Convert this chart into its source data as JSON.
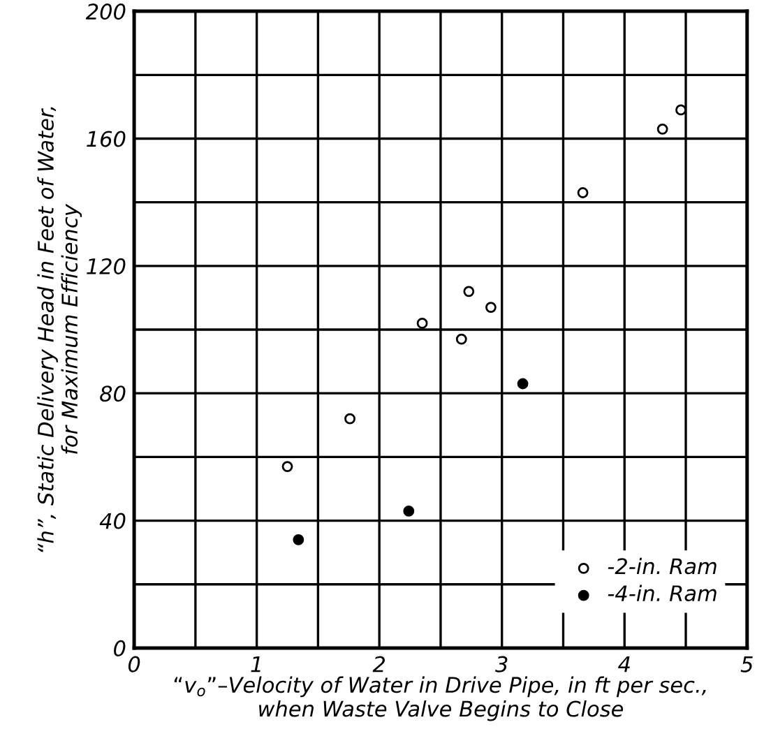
{
  "chart_data": {
    "type": "scatter",
    "xlabel": "“v$_{o}$”–Velocity of Water in Drive Pipe, in ft per sec.,\nwhen Waste Valve Begins to Close",
    "ylabel": "“h”, Static Delivery Head in Feet of Water,\nfor Maximum Efficiency",
    "series": [
      {
        "name": "-2-in. Ram",
        "color": "#000000",
        "marker": "open circle",
        "x": [
          1.25,
          1.76,
          2.35,
          2.67,
          2.73,
          2.91,
          3.66,
          4.31,
          4.46
        ],
        "values": [
          57,
          72,
          102,
          97,
          112,
          107,
          143,
          163,
          169
        ]
      },
      {
        "name": "-4-in. Ram",
        "color": "#000000",
        "marker": "circle",
        "x": [
          1.34,
          2.24,
          3.17
        ],
        "values": [
          34,
          43,
          83
        ]
      }
    ],
    "xlim": [
      0,
      5
    ],
    "ylim": [
      0,
      200
    ],
    "xticks": [
      0,
      {
        "value": 0.5,
        "label": null
      },
      1,
      {
        "value": 1.5,
        "label": null
      },
      2,
      {
        "value": 2.5,
        "label": null
      },
      3,
      {
        "value": 3.5,
        "label": null
      },
      4,
      {
        "value": 4.5,
        "label": null
      },
      5
    ],
    "yticks": [
      0,
      {
        "value": 20,
        "label": null
      },
      40,
      {
        "value": 60,
        "label": null
      },
      80,
      {
        "value": 100,
        "label": null
      },
      120,
      {
        "value": 140,
        "label": null
      },
      160,
      {
        "value": 180,
        "label": null
      },
      200
    ],
    "grid": true,
    "legend": "bottom right"
  }
}
